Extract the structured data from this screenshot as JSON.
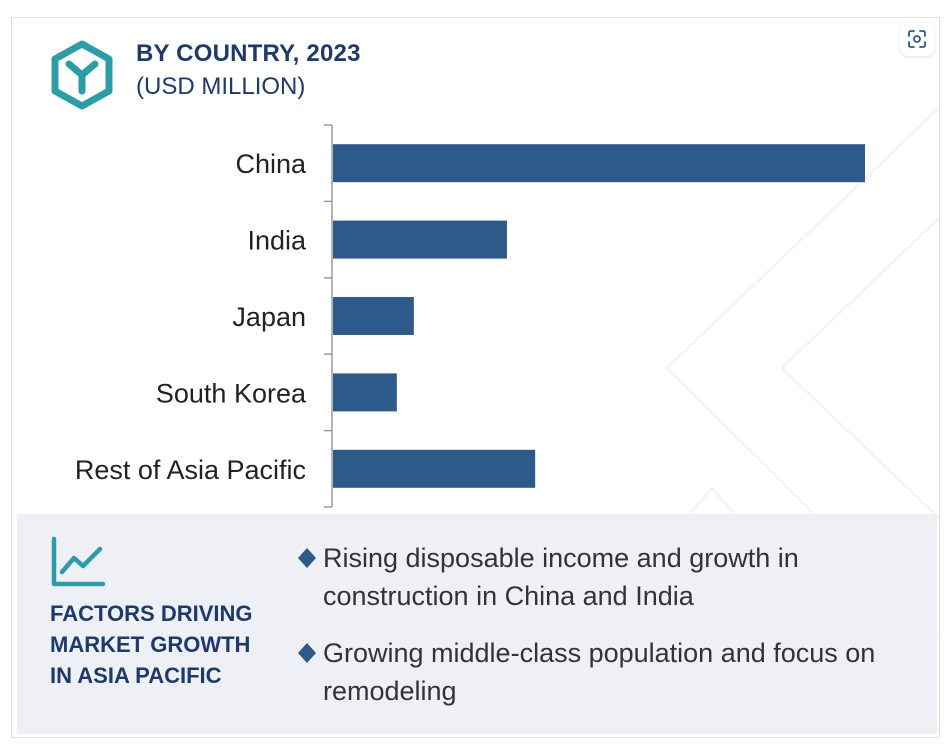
{
  "header": {
    "title": "BY COUNTRY, 2023",
    "subtitle": "(USD MILLION)"
  },
  "chart_data": {
    "type": "bar",
    "orientation": "horizontal",
    "title": "BY COUNTRY, 2023",
    "subtitle": "(USD MILLION)",
    "categories": [
      "China",
      "India",
      "Japan",
      "South Korea",
      "Rest of Asia Pacific"
    ],
    "values": [
      100,
      32.7,
      15.2,
      12.0,
      38.0
    ],
    "bar_color": "#2c5a8a",
    "grid": false,
    "value_axis_shown": false
  },
  "factors": {
    "title": "FACTORS DRIVING MARKET GROWTH IN ASIA PACIFIC",
    "items": [
      "Rising disposable income and growth in construction in China and India",
      "Growing middle-class population and focus on remodeling"
    ]
  },
  "colors": {
    "accent": "#2c9ca6",
    "navy": "#1d3a6b",
    "bar": "#2c5a8a",
    "bullet": "#2c5a8a",
    "panel_bg": "#eef0f5"
  },
  "icons": {
    "logo": "hexagon-logo-icon",
    "expand": "focus-expand-icon",
    "trend": "trend-chart-icon",
    "bullet": "diamond-bullet-icon"
  }
}
